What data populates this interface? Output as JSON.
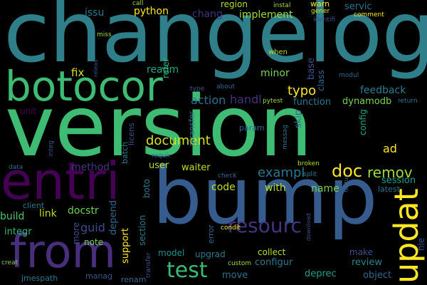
{
  "words": {
    "changelog": {
      "text": "changelog",
      "color": "#2e7f8a"
    },
    "version": {
      "text": "version",
      "color": "#3fbc73"
    },
    "bump": {
      "text": "bump",
      "color": "#365c8d"
    },
    "entri": {
      "text": "entri",
      "color": "#440154"
    },
    "botocor": {
      "text": "botocor",
      "color": "#3fbc73"
    },
    "from": {
      "text": "from",
      "color": "#472f7d"
    },
    "updat": {
      "text": "updat",
      "color": "#fde725"
    },
    "resourc": {
      "text": "resourc",
      "color": "#46337e"
    },
    "test": {
      "text": "test",
      "color": "#3aba76"
    },
    "doc": {
      "text": "doc",
      "color": "#fde725"
    },
    "remov": {
      "text": "remov",
      "color": "#a0da39"
    },
    "exampl": {
      "text": "exampl",
      "color": "#2a788e"
    },
    "document": {
      "text": "document",
      "color": "#d8e219"
    },
    "typo": {
      "text": "typo",
      "color": "#fde725"
    },
    "fix": {
      "text": "fix",
      "color": "#d8e219"
    },
    "action": {
      "text": "action",
      "color": "#2e6e8e"
    },
    "handl": {
      "text": "handl",
      "color": "#46327e"
    },
    "function": {
      "text": "function",
      "color": "#2a788e"
    },
    "feedback": {
      "text": "feedback",
      "color": "#277f8e"
    },
    "dynamodb": {
      "text": "dynamodb",
      "color": "#7ad151"
    },
    "python": {
      "text": "python",
      "color": "#fde725"
    },
    "implement": {
      "text": "implement",
      "color": "#a0da39"
    },
    "region": {
      "text": "region",
      "color": "#b5de2b"
    },
    "servic": {
      "text": "servic",
      "color": "#2c728e"
    },
    "issu": {
      "text": "issu",
      "color": "#2a788e"
    },
    "chang": {
      "text": "chang",
      "color": "#46327e"
    },
    "readm": {
      "text": "readm",
      "color": "#22a884"
    },
    "refer": {
      "text": "refer",
      "color": "#35b779"
    },
    "minor": {
      "text": "minor",
      "color": "#7ad151"
    },
    "base": {
      "text": "base",
      "color": "#3b528b"
    },
    "class": {
      "text": "class",
      "color": "#30688e"
    },
    "skip": {
      "text": "skip",
      "color": "#2d708e"
    },
    "config": {
      "text": "config",
      "color": "#22a884"
    },
    "ad": {
      "text": "ad",
      "color": "#fde725"
    },
    "session": {
      "text": "session",
      "color": "#1fa188"
    },
    "latest": {
      "text": "latest",
      "color": "#2c728e"
    },
    "name": {
      "text": "name",
      "color": "#7ad151"
    },
    "with": {
      "text": "with",
      "color": "#b5de2b"
    },
    "code": {
      "text": "code",
      "color": "#c2df23"
    },
    "user": {
      "text": "user",
      "color": "#b5de2b"
    },
    "waiter": {
      "text": "waiter",
      "color": "#c2df23"
    },
    "method": {
      "text": "method",
      "color": "#46337e"
    },
    "boto": {
      "text": "boto",
      "color": "#2a788e"
    },
    "link": {
      "text": "link",
      "color": "#b5de2b"
    },
    "docstr": {
      "text": "docstr",
      "color": "#6ece58"
    },
    "build": {
      "text": "build",
      "color": "#52c569"
    },
    "guid": {
      "text": "guid",
      "color": "#3e4a89"
    },
    "depend": {
      "text": "depend",
      "color": "#31688e"
    },
    "section": {
      "text": "section",
      "color": "#2a788e"
    },
    "support": {
      "text": "support",
      "color": "#fde725"
    },
    "integr": {
      "text": "integr",
      "color": "#35b779"
    },
    "more": {
      "text": "more",
      "color": "#3b528b"
    },
    "note": {
      "text": "note",
      "color": "#7ad151"
    },
    "model": {
      "text": "model",
      "color": "#21918c"
    },
    "upgrad": {
      "text": "upgrad",
      "color": "#2a788e"
    },
    "collect": {
      "text": "collect",
      "color": "#b5de2b"
    },
    "make": {
      "text": "make",
      "color": "#3b528b"
    },
    "review": {
      "text": "review",
      "color": "#25848e"
    },
    "configur": {
      "text": "configur",
      "color": "#2a788e"
    },
    "move": {
      "text": "move",
      "color": "#2c728e"
    },
    "deprec": {
      "text": "deprec",
      "color": "#1f9e89"
    },
    "object": {
      "text": "object",
      "color": "#31688e"
    },
    "file": {
      "text": "file",
      "color": "#3b528b"
    },
    "unit": {
      "text": "unit",
      "color": "#440154"
    },
    "param": {
      "text": "param",
      "color": "#31688e"
    },
    "messag": {
      "text": "messag",
      "color": "#2c728e"
    },
    "stransfer": {
      "text": "stransfer",
      "color": "#2a788e"
    },
    "licens": {
      "text": "licens",
      "color": "#3b528b"
    },
    "batch": {
      "text": "batch",
      "color": "#2a788e"
    },
    "requir": {
      "text": "requir",
      "color": "#31688e"
    },
    "integ": {
      "text": "integ",
      "color": "#3b528b"
    },
    "client": {
      "text": "client",
      "color": "#2a788e"
    },
    "data": {
      "text": "data",
      "color": "#31688e"
    },
    "creat": {
      "text": "creat",
      "color": "#7ad151"
    },
    "jmespath": {
      "text": "jmespath",
      "color": "#2a788e"
    },
    "manag": {
      "text": "manag",
      "color": "#3b528b"
    },
    "renam": {
      "text": "renam",
      "color": "#31688e"
    },
    "transfer": {
      "text": "transfer",
      "color": "#3b528b"
    },
    "custom": {
      "text": "custom",
      "color": "#a0da39"
    },
    "error": {
      "text": "error",
      "color": "#31688e"
    },
    "download": {
      "text": "download",
      "color": "#3b528b"
    },
    "check": {
      "text": "check",
      "color": "#31688e"
    },
    "condit": {
      "text": "condit",
      "color": "#fde725"
    },
    "broken": {
      "text": "broken",
      "color": "#b5de2b"
    },
    "split": {
      "text": "split",
      "color": "#2a788e"
    },
    "featur": {
      "text": "featur",
      "color": "#31688e"
    },
    "type": {
      "text": "type",
      "color": "#3b528b"
    },
    "about": {
      "text": "about",
      "color": "#31688e"
    },
    "pytest": {
      "text": "pytest",
      "color": "#a0da39"
    },
    "return": {
      "text": "return",
      "color": "#2a788e"
    },
    "modul": {
      "text": "modul",
      "color": "#31688e"
    },
    "when": {
      "text": "when",
      "color": "#b5de2b"
    },
    "warn": {
      "text": "warn",
      "color": "#fde725"
    },
    "gener": {
      "text": "gener",
      "color": "#d8e219"
    },
    "instal": {
      "text": "instal",
      "color": "#a0da39"
    },
    "identifi": {
      "text": "identifi",
      "color": "#3b528b"
    },
    "comment": {
      "text": "comment",
      "color": "#fde725"
    },
    "call": {
      "text": "call",
      "color": "#a0da39"
    },
    "miss": {
      "text": "miss",
      "color": "#a0da39"
    },
    "releas": {
      "text": "releas",
      "color": "#3b528b"
    }
  }
}
